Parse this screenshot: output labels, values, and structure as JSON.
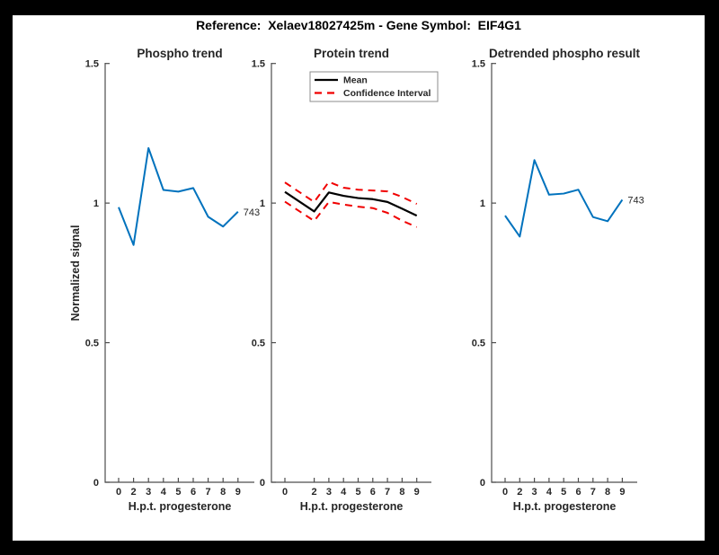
{
  "figure_title": "Reference:  Xelaev18027425m - Gene Symbol:  EIF4G1",
  "colors": {
    "frame": "#000000",
    "canvas": "#ffffff",
    "axis": "#4d4d4d",
    "tick_text": "#262626",
    "blue_line": "#0072BD",
    "mean_line": "#000000",
    "ci_line": "#f00000"
  },
  "chart_data": [
    {
      "type": "line",
      "title": "Phospho trend",
      "xlabel": "H.p.t. progesterone",
      "ylabel": "Normalized signal",
      "x_mode": "index",
      "categories": [
        0,
        2,
        3,
        4,
        5,
        6,
        7,
        8,
        9
      ],
      "xticklabels": [
        "0",
        "2",
        "3",
        "4",
        "5",
        "6",
        "7",
        "8",
        "9"
      ],
      "yticks": [
        0,
        0.5,
        1,
        1.5
      ],
      "yticklabels": [
        "0",
        "0.5",
        "1",
        "1.5"
      ],
      "ylim": [
        0,
        1.5
      ],
      "grid": false,
      "series": [
        {
          "name": "phospho",
          "color": "#0072BD",
          "style": "solid",
          "width": 2,
          "values": [
            0.985,
            0.85,
            1.197,
            1.047,
            1.041,
            1.054,
            0.951,
            0.916,
            0.969
          ]
        }
      ],
      "end_label": "743"
    },
    {
      "type": "line",
      "title": "Protein trend",
      "xlabel": "H.p.t. progesterone",
      "ylabel": "",
      "x_mode": "value",
      "categories": [
        0,
        2,
        3,
        4,
        5,
        6,
        7,
        8,
        9
      ],
      "xticklabels": [
        "0",
        "2",
        "3",
        "4",
        "5",
        "6",
        "7",
        "8",
        "9"
      ],
      "yticks": [
        0,
        0.5,
        1,
        1.5
      ],
      "yticklabels": [
        "0",
        "0.5",
        "1",
        "1.5"
      ],
      "ylim": [
        0,
        1.5
      ],
      "grid": false,
      "series": [
        {
          "name": "Mean",
          "color": "#000000",
          "style": "solid",
          "width": 2.2,
          "values": [
            1.04,
            0.97,
            1.038,
            1.026,
            1.018,
            1.014,
            1.004,
            0.98,
            0.955
          ]
        },
        {
          "name": "Confidence Interval upper",
          "color": "#f00000",
          "style": "dashed",
          "width": 2,
          "values": [
            1.074,
            1.004,
            1.076,
            1.055,
            1.048,
            1.045,
            1.042,
            1.022,
            0.997
          ]
        },
        {
          "name": "Confidence Interval lower",
          "color": "#f00000",
          "style": "dashed",
          "width": 2,
          "values": [
            1.005,
            0.936,
            1.004,
            0.995,
            0.987,
            0.982,
            0.965,
            0.937,
            0.914
          ]
        }
      ],
      "legend": {
        "position": "northeast",
        "entries": [
          {
            "label": "Mean",
            "color": "#000000",
            "style": "solid"
          },
          {
            "label": "Confidence Interval",
            "color": "#f00000",
            "style": "dashed"
          }
        ]
      }
    },
    {
      "type": "line",
      "title": "Detrended phospho result",
      "xlabel": "H.p.t. progesterone",
      "ylabel": "",
      "x_mode": "index",
      "categories": [
        0,
        2,
        3,
        4,
        5,
        6,
        7,
        8,
        9
      ],
      "xticklabels": [
        "0",
        "2",
        "3",
        "4",
        "5",
        "6",
        "7",
        "8",
        "9"
      ],
      "yticks": [
        0,
        0.5,
        1,
        1.5
      ],
      "yticklabels": [
        "0",
        "0.5",
        "1",
        "1.5"
      ],
      "ylim": [
        0,
        1.5
      ],
      "grid": false,
      "series": [
        {
          "name": "detrended phospho",
          "color": "#0072BD",
          "style": "solid",
          "width": 2,
          "values": [
            0.955,
            0.88,
            1.154,
            1.03,
            1.034,
            1.048,
            0.95,
            0.935,
            1.012
          ]
        }
      ],
      "end_label": "743"
    }
  ]
}
